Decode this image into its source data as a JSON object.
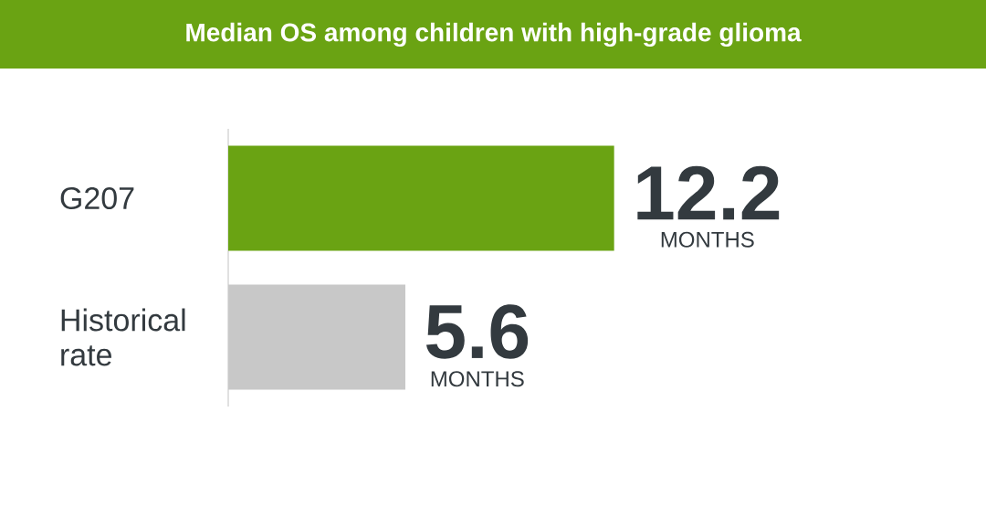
{
  "chart_data": {
    "type": "bar",
    "orientation": "horizontal",
    "title": "Median OS among children with high-grade glioma",
    "categories": [
      "G207",
      "Historical rate"
    ],
    "values": [
      12.2,
      5.6
    ],
    "colors": [
      "#6aa313",
      "#c8c8c8"
    ],
    "value_labels": [
      "12.2",
      "5.6"
    ],
    "annotations": [
      "MONTHS",
      "MONTHS"
    ],
    "tick_labels": "y"
  }
}
